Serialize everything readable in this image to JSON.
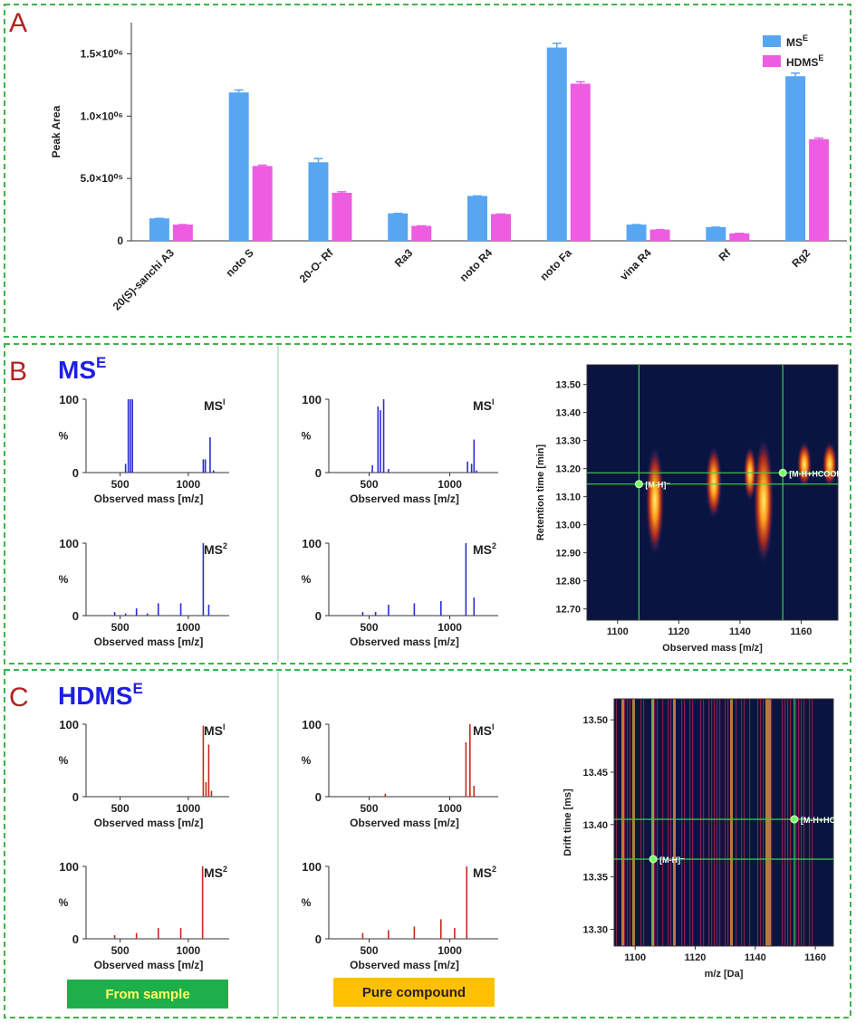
{
  "figure": {
    "panels": [
      {
        "label": "A"
      },
      {
        "label": "B",
        "heading": "MS",
        "heading_sup": "E"
      },
      {
        "label": "C",
        "heading": "HDMS",
        "heading_sup": "E"
      }
    ],
    "captions": [
      "From sample",
      "Pure compound"
    ]
  },
  "chart_data": [
    {
      "type": "bar",
      "ylabel": "Peak Area",
      "categories": [
        "20(S)-sanchi A3",
        "noto S",
        "20-O- Rf",
        "Ra3",
        "noto R4",
        "noto Fa",
        "vina R4",
        "Rf",
        "Rg2"
      ],
      "series": [
        {
          "name": "MS",
          "name_sup": "E",
          "color": "#58a6f2",
          "values": [
            180000,
            1190000,
            630000,
            220000,
            360000,
            1550000,
            130000,
            110000,
            1320000
          ],
          "errors": [
            0,
            20000,
            30000,
            0,
            0,
            35000,
            0,
            0,
            25000
          ]
        },
        {
          "name": "HDMS",
          "name_sup": "E",
          "color": "#ee5ce2",
          "values": [
            130000,
            600000,
            385000,
            120000,
            215000,
            1260000,
            90000,
            60000,
            815000
          ],
          "errors": [
            0,
            6000,
            8000,
            0,
            0,
            15000,
            0,
            0,
            9000
          ]
        }
      ],
      "ylim": [
        0,
        1750000
      ],
      "yticks": [
        0,
        {
          "value": 500000,
          "label": "5.0×10⁰⁵"
        },
        {
          "value": 1000000,
          "label": "1.0×10⁰⁶"
        },
        {
          "value": 1500000,
          "label": "1.5×10⁰⁶"
        }
      ],
      "legend": "top-right"
    },
    {
      "type": "spectrum",
      "title": "MS",
      "title_sup": "I",
      "xlabel": "Observed mass [m/z]",
      "ylabel": "%",
      "color": "#2b2bd6",
      "x": [
        540,
        560,
        575,
        590,
        1110,
        1125,
        1160,
        1185
      ],
      "values": [
        12,
        100,
        100,
        100,
        18,
        18,
        48,
        3
      ],
      "xlim": [
        250,
        1300
      ],
      "xticks": [
        500,
        1000
      ],
      "ylim": [
        0,
        100
      ],
      "yticks": [
        0,
        100
      ]
    },
    {
      "type": "spectrum",
      "title": "MS",
      "title_sup": "I",
      "xlabel": "Observed mass [m/z]",
      "ylabel": "%",
      "color": "#2b2bd6",
      "x": [
        520,
        555,
        570,
        590,
        620,
        1110,
        1135,
        1150,
        1165
      ],
      "values": [
        10,
        90,
        85,
        100,
        5,
        15,
        12,
        45,
        3
      ],
      "xlim": [
        250,
        1300
      ],
      "xticks": [
        500,
        1000
      ],
      "ylim": [
        0,
        100
      ],
      "yticks": [
        0,
        100
      ]
    },
    {
      "type": "spectrum",
      "title": "MS",
      "title_sup": "2",
      "xlabel": "Observed mass [m/z]",
      "ylabel": "%",
      "color": "#2b2bd6",
      "x": [
        460,
        540,
        620,
        700,
        780,
        945,
        1110,
        1150
      ],
      "values": [
        5,
        3,
        10,
        3,
        17,
        17,
        100,
        15
      ],
      "xlim": [
        250,
        1300
      ],
      "xticks": [
        500,
        1000
      ],
      "ylim": [
        0,
        100
      ],
      "yticks": [
        0,
        100
      ]
    },
    {
      "type": "spectrum",
      "title": "MS",
      "title_sup": "2",
      "xlabel": "Observed mass [m/z]",
      "ylabel": "%",
      "color": "#2b2bd6",
      "x": [
        460,
        540,
        620,
        780,
        945,
        1100,
        1150
      ],
      "values": [
        5,
        5,
        15,
        17,
        20,
        100,
        25
      ],
      "xlim": [
        250,
        1300
      ],
      "xticks": [
        500,
        1000
      ],
      "ylim": [
        0,
        100
      ],
      "yticks": [
        0,
        100
      ]
    },
    {
      "type": "spectrum",
      "title": "MS",
      "title_sup": "I",
      "xlabel": "Observed mass [m/z]",
      "ylabel": "%",
      "color": "#c8281e",
      "x": [
        1110,
        1130,
        1150,
        1170
      ],
      "values": [
        98,
        20,
        72,
        8
      ],
      "xlim": [
        250,
        1300
      ],
      "xticks": [
        500,
        1000
      ],
      "ylim": [
        0,
        100
      ],
      "yticks": [
        0,
        100
      ]
    },
    {
      "type": "spectrum",
      "title": "MS",
      "title_sup": "I",
      "xlabel": "Observed mass [m/z]",
      "ylabel": "%",
      "color": "#c8281e",
      "x": [
        600,
        1100,
        1125,
        1150
      ],
      "values": [
        4,
        75,
        100,
        15
      ],
      "xlim": [
        250,
        1300
      ],
      "xticks": [
        500,
        1000
      ],
      "ylim": [
        0,
        100
      ],
      "yticks": [
        0,
        100
      ]
    },
    {
      "type": "spectrum",
      "title": "MS",
      "title_sup": "2",
      "xlabel": "Observed mass [m/z]",
      "ylabel": "%",
      "color": "#c8281e",
      "x": [
        460,
        620,
        780,
        945,
        1105
      ],
      "values": [
        5,
        8,
        15,
        15,
        100
      ],
      "xlim": [
        250,
        1300
      ],
      "xticks": [
        500,
        1000
      ],
      "ylim": [
        0,
        100
      ],
      "yticks": [
        0,
        100
      ]
    },
    {
      "type": "spectrum",
      "title": "MS",
      "title_sup": "2",
      "xlabel": "Observed mass [m/z]",
      "ylabel": "%",
      "color": "#c8281e",
      "x": [
        460,
        620,
        780,
        945,
        1030,
        1105
      ],
      "values": [
        8,
        12,
        17,
        27,
        15,
        100
      ],
      "xlim": [
        250,
        1300
      ],
      "xticks": [
        500,
        1000
      ],
      "ylim": [
        0,
        100
      ],
      "yticks": [
        0,
        100
      ]
    },
    {
      "type": "heatmap",
      "xlabel": "Observed mass [m/z]",
      "ylabel": "Retention  time [min]",
      "xlim": [
        1090,
        1172
      ],
      "xticks": [
        1100,
        1120,
        1140,
        1160
      ],
      "ylim": [
        12.66,
        13.57
      ],
      "yticks": [
        {
          "value": 12.7,
          "label": "12.70"
        },
        {
          "value": 12.8,
          "label": "12.80"
        },
        {
          "value": 12.9,
          "label": "12.90"
        },
        {
          "value": 13,
          "label": "13.00"
        },
        {
          "value": 13.1,
          "label": "13.10"
        },
        {
          "value": 13.2,
          "label": "13.20"
        },
        {
          "value": 13.3,
          "label": "13.30"
        },
        {
          "value": 13.4,
          "label": "13.40"
        },
        {
          "value": 13.5,
          "label": "13.50"
        }
      ],
      "markers": [
        {
          "x": 1107,
          "y": 13.145,
          "label": "[M-H]⁻"
        },
        {
          "x": 1154,
          "y": 13.185,
          "label": "[M-H+HCOOH]⁻"
        }
      ]
    },
    {
      "type": "heatmap",
      "xlabel": "m/z [Da]",
      "ylabel": "Drift time [ms]",
      "xlim": [
        1093,
        1166
      ],
      "xticks": [
        1100,
        1120,
        1140,
        1160
      ],
      "ylim": [
        13.284,
        13.52
      ],
      "yticks": [
        {
          "value": 13.3,
          "label": "13.30"
        },
        13.35,
        {
          "value": 13.4,
          "label": "13.40"
        },
        13.45,
        {
          "value": 13.5,
          "label": "13.50"
        }
      ],
      "markers": [
        {
          "x": 1106,
          "y": 13.367,
          "label": "[M-H]⁻"
        },
        {
          "x": 1153,
          "y": 13.405,
          "label": "[M-H+HCOOH]⁻"
        }
      ]
    }
  ]
}
